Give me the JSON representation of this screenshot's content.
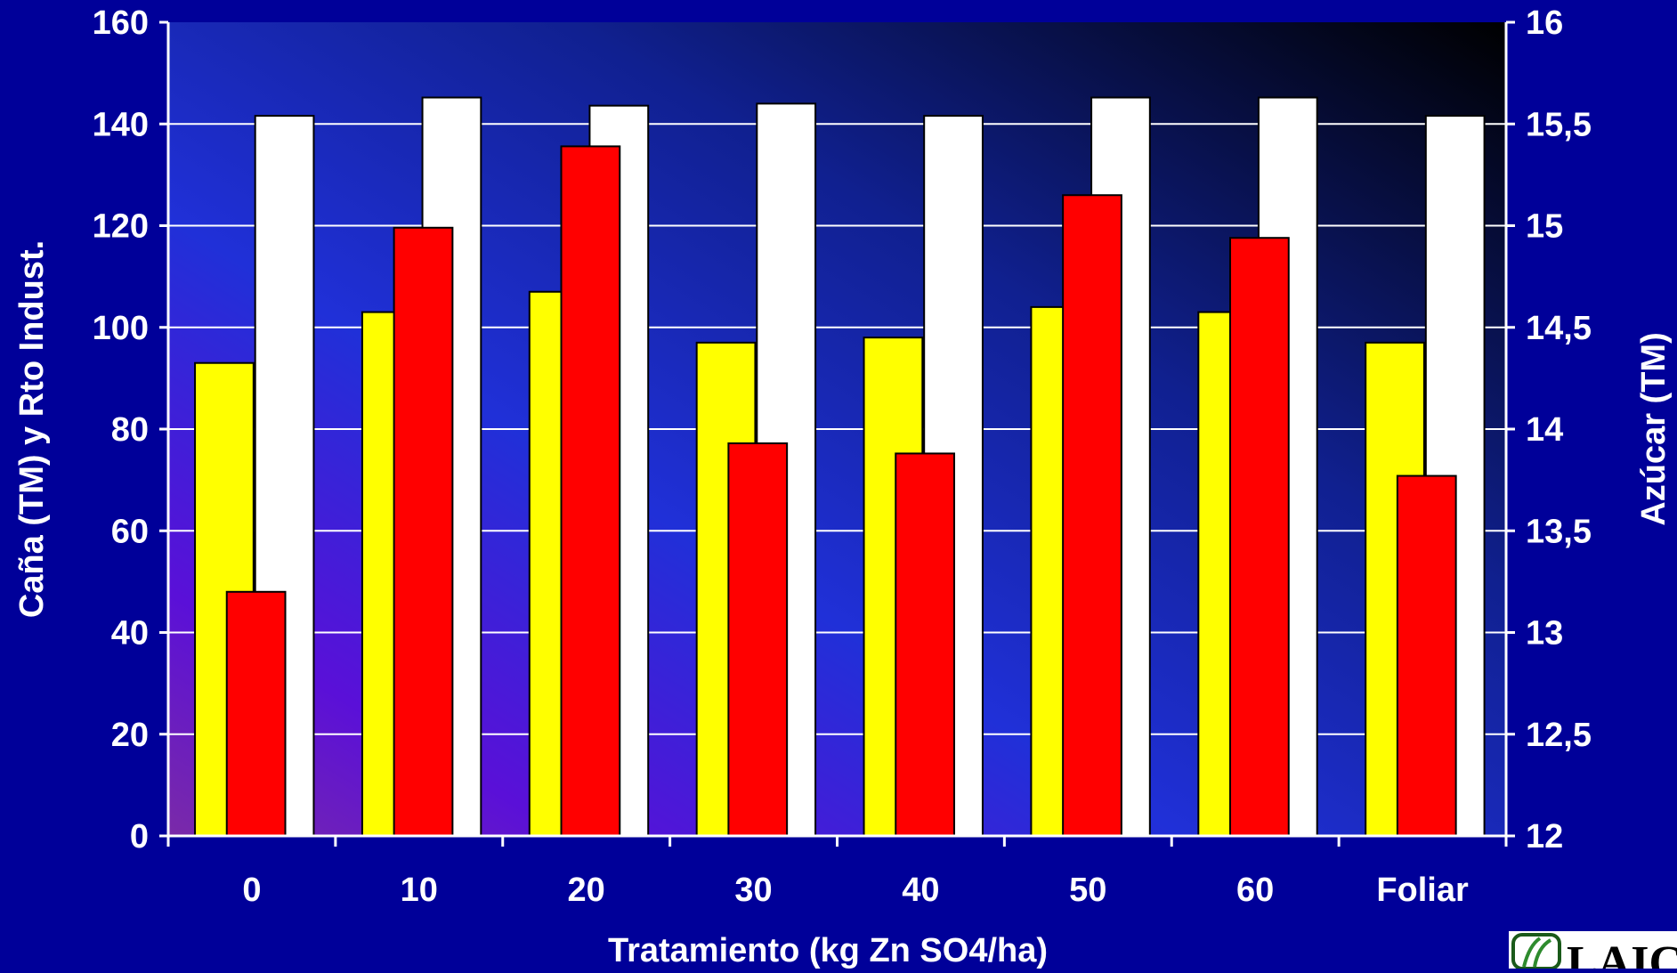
{
  "chart_data": {
    "type": "bar",
    "categories": [
      "0",
      "10",
      "20",
      "30",
      "40",
      "50",
      "60",
      "Foliar"
    ],
    "xlabel": "Tratamiento (kg Zn SO4/ha)",
    "ylabel": "Caña (TM) y Rto Indust.",
    "y2label": "Azúcar (TM)",
    "ylim": [
      0,
      160
    ],
    "y2lim": [
      12,
      16
    ],
    "yticks": [
      "0",
      "20",
      "40",
      "60",
      "80",
      "100",
      "120",
      "140",
      "160"
    ],
    "y2ticks": [
      "12",
      "12,5",
      "13",
      "13,5",
      "14",
      "14,5",
      "15",
      "15,5",
      "16"
    ],
    "grid": true,
    "legend": "none",
    "series": [
      {
        "axis": "left",
        "color": "#ffff00",
        "values": [
          93,
          103,
          107,
          97,
          98,
          104,
          103,
          97
        ]
      },
      {
        "axis": "right",
        "color": "#ff0000",
        "values": [
          13.2,
          14.99,
          15.39,
          13.93,
          13.88,
          15.15,
          14.94,
          13.77
        ]
      },
      {
        "axis": "right",
        "color": "#ffffff",
        "values": [
          15.54,
          15.63,
          15.59,
          15.6,
          15.54,
          15.63,
          15.63,
          15.54
        ]
      }
    ]
  },
  "logo": {
    "text": "LAIC",
    "accent": "#2e8b2e"
  }
}
